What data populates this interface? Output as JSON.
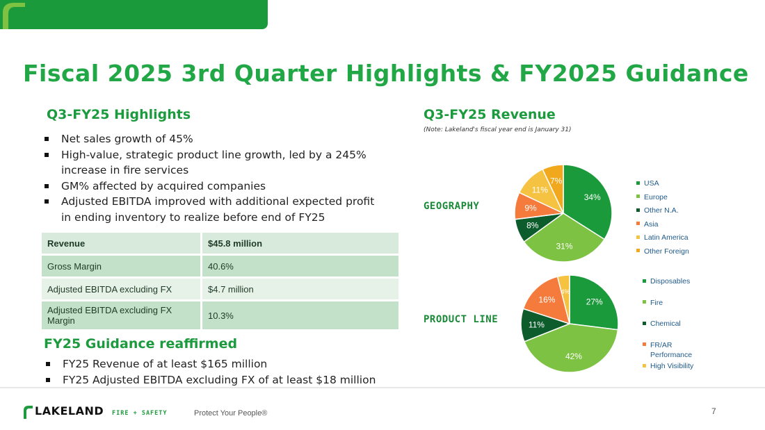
{
  "title": "Fiscal 2025 3rd Quarter Highlights & FY2025 Guidance",
  "highlights": {
    "heading": "Q3-FY25 Highlights",
    "bullets": [
      "Net sales growth of 45%",
      "High-value, strategic product line growth, led by a 245% increase in fire services",
      "GM% affected by acquired companies",
      "Adjusted EBITDA improved with additional expected profit in ending inventory to realize before end of FY25"
    ]
  },
  "metrics_table": {
    "rows": [
      {
        "label": "Revenue",
        "value": "$45.8 million"
      },
      {
        "label": "Gross Margin",
        "value": "40.6%"
      },
      {
        "label": "Adjusted EBITDA excluding FX",
        "value": "$4.7 million"
      },
      {
        "label": "Adjusted EBITDA excluding FX Margin",
        "value": "10.3%"
      }
    ]
  },
  "guidance": {
    "heading": "FY25 Guidance reaffirmed",
    "bullets": [
      "FY25 Revenue of at least $165 million",
      "FY25 Adjusted EBITDA excluding FX of at least $18 million"
    ]
  },
  "revenue": {
    "heading": "Q3-FY25 Revenue",
    "note": "(Note: Lakeland's fiscal year end is January 31)"
  },
  "chart_data": [
    {
      "type": "pie",
      "label": "GEOGRAPHY",
      "categories": [
        "USA",
        "Europe",
        "Other N.A.",
        "Asia",
        "Latin America",
        "Other Foreign"
      ],
      "values": [
        34,
        31,
        8,
        9,
        11,
        7
      ],
      "slice_labels": [
        "34%",
        "31%",
        "8%",
        "9%",
        "11%",
        "7%"
      ],
      "colors": [
        "#1a9a3a",
        "#7dc242",
        "#0d5c2c",
        "#f47b3c",
        "#f5c242",
        "#f2a81d"
      ],
      "legend_position": "right"
    },
    {
      "type": "pie",
      "label": "PRODUCT LINE",
      "categories": [
        "Disposables",
        "Fire",
        "Chemical",
        "FR/AR Performance",
        "High Visibility"
      ],
      "legend_lines": [
        [
          "Disposables"
        ],
        [
          "Fire"
        ],
        [
          "Chemical"
        ],
        [
          "FR/AR",
          "Performance"
        ],
        [
          "High Visibility"
        ]
      ],
      "values": [
        27,
        42,
        11,
        16,
        4
      ],
      "slice_labels": [
        "27%",
        "42%",
        "11%",
        "16%",
        "4%"
      ],
      "colors": [
        "#1a9a3a",
        "#7dc242",
        "#0d5c2c",
        "#f47b3c",
        "#f5c242"
      ],
      "legend_position": "right"
    }
  ],
  "footer": {
    "logo_word": "LAKELAND",
    "logo_sub": "FIRE + SAFETY",
    "tagline": "Protect Your People®",
    "page_number": "7"
  }
}
